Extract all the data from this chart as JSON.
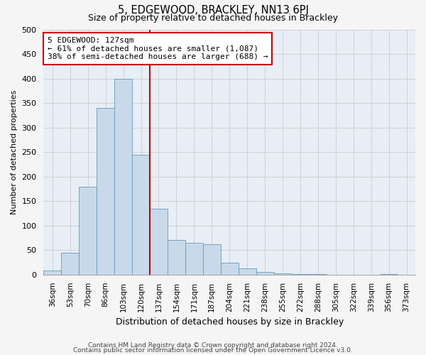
{
  "title": "5, EDGEWOOD, BRACKLEY, NN13 6PJ",
  "subtitle": "Size of property relative to detached houses in Brackley",
  "xlabel": "Distribution of detached houses by size in Brackley",
  "ylabel": "Number of detached properties",
  "bar_labels": [
    "36sqm",
    "53sqm",
    "70sqm",
    "86sqm",
    "103sqm",
    "120sqm",
    "137sqm",
    "154sqm",
    "171sqm",
    "187sqm",
    "204sqm",
    "221sqm",
    "238sqm",
    "255sqm",
    "272sqm",
    "288sqm",
    "305sqm",
    "322sqm",
    "339sqm",
    "356sqm",
    "373sqm"
  ],
  "bar_values": [
    8,
    45,
    180,
    340,
    400,
    245,
    135,
    70,
    65,
    62,
    25,
    13,
    5,
    2,
    1,
    1,
    0,
    0,
    0,
    1,
    0
  ],
  "bar_color": "#c8d9ea",
  "bar_edge_color": "#6699bb",
  "grid_color": "#cccccc",
  "bg_color": "#e8eef5",
  "fig_bg_color": "#f5f5f5",
  "ylim": [
    0,
    500
  ],
  "yticks": [
    0,
    50,
    100,
    150,
    200,
    250,
    300,
    350,
    400,
    450,
    500
  ],
  "property_line_x": 5.5,
  "annotation_text": "5 EDGEWOOD: 127sqm\n← 61% of detached houses are smaller (1,087)\n38% of semi-detached houses are larger (688) →",
  "annotation_box_color": "#cc0000",
  "footer_line1": "Contains HM Land Registry data © Crown copyright and database right 2024.",
  "footer_line2": "Contains public sector information licensed under the Open Government Licence v3.0."
}
